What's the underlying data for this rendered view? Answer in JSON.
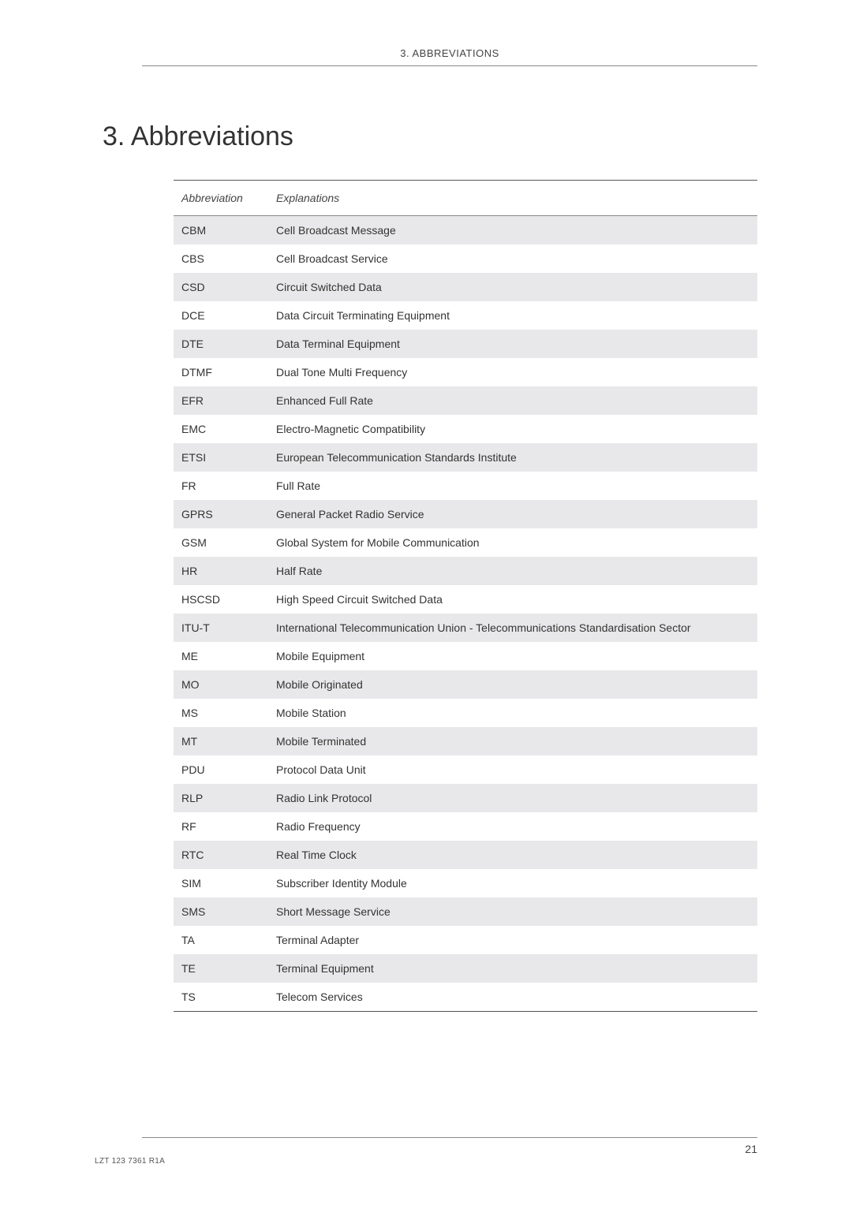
{
  "header": {
    "runningTitle": "3. ABBREVIATIONS"
  },
  "title": "3. Abbreviations",
  "table": {
    "columns": [
      "Abbreviation",
      "Explanations"
    ],
    "rows": [
      {
        "abbr": "CBM",
        "expl": "Cell Broadcast Message"
      },
      {
        "abbr": "CBS",
        "expl": "Cell Broadcast Service"
      },
      {
        "abbr": "CSD",
        "expl": "Circuit Switched Data"
      },
      {
        "abbr": "DCE",
        "expl": "Data Circuit Terminating Equipment"
      },
      {
        "abbr": "DTE",
        "expl": "Data Terminal Equipment"
      },
      {
        "abbr": "DTMF",
        "expl": "Dual Tone Multi Frequency"
      },
      {
        "abbr": "EFR",
        "expl": "Enhanced Full Rate"
      },
      {
        "abbr": "EMC",
        "expl": "Electro-Magnetic Compatibility"
      },
      {
        "abbr": "ETSI",
        "expl": "European Telecommunication Standards Institute"
      },
      {
        "abbr": "FR",
        "expl": "Full Rate"
      },
      {
        "abbr": "GPRS",
        "expl": "General Packet Radio Service"
      },
      {
        "abbr": "GSM",
        "expl": "Global System for Mobile Communication"
      },
      {
        "abbr": "HR",
        "expl": "Half Rate"
      },
      {
        "abbr": "HSCSD",
        "expl": "High Speed Circuit Switched Data"
      },
      {
        "abbr": "ITU-T",
        "expl": "International Telecommunication Union - Telecommunications Standardisation Sector"
      },
      {
        "abbr": "ME",
        "expl": "Mobile Equipment"
      },
      {
        "abbr": "MO",
        "expl": "Mobile Originated"
      },
      {
        "abbr": "MS",
        "expl": "Mobile Station"
      },
      {
        "abbr": "MT",
        "expl": "Mobile Terminated"
      },
      {
        "abbr": "PDU",
        "expl": "Protocol Data Unit"
      },
      {
        "abbr": "RLP",
        "expl": "Radio Link Protocol"
      },
      {
        "abbr": "RF",
        "expl": "Radio Frequency"
      },
      {
        "abbr": "RTC",
        "expl": "Real Time Clock"
      },
      {
        "abbr": "SIM",
        "expl": "Subscriber Identity Module"
      },
      {
        "abbr": "SMS",
        "expl": "Short Message Service"
      },
      {
        "abbr": "TA",
        "expl": "Terminal Adapter"
      },
      {
        "abbr": "TE",
        "expl": "Terminal Equipment"
      },
      {
        "abbr": "TS",
        "expl": "Telecom Services"
      }
    ],
    "shadedRowColor": "#e8e8ea",
    "borderColor": "#555555",
    "headerBorderColor": "#888888"
  },
  "footer": {
    "docRef": "LZT 123 7361 R1A",
    "pageNumber": "21"
  }
}
